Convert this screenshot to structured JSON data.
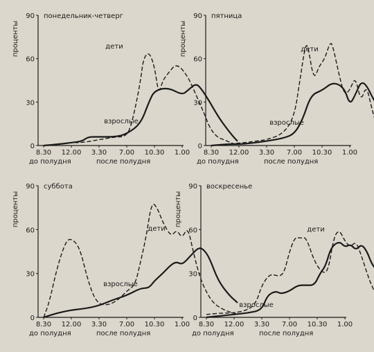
{
  "colors": {
    "background": "#dcd7cc",
    "ink": "#1a1a1a"
  },
  "chart_data": [
    {
      "type": "line",
      "title": "понедельник-четверг",
      "ylabel": "проценты",
      "ylim": [
        0,
        90
      ],
      "yticks": [
        0,
        30,
        60,
        90
      ],
      "x_ticks": [
        "8.30",
        "12.00",
        "3.30",
        "7.00",
        "10.30",
        "1.00"
      ],
      "x_subtitles": [
        "до полудня",
        "после полудня"
      ],
      "grid": false,
      "series": [
        {
          "name": "дети",
          "style": "dashed",
          "x": [
            0,
            0.6,
            1.0,
            1.4,
            2.0,
            2.6,
            2.9,
            3.1,
            3.3,
            3.5,
            3.6,
            3.8,
            4.0,
            4.15,
            4.3,
            4.5,
            4.8,
            5.2,
            5.5,
            5.8,
            6.0,
            6.25,
            6.5,
            6.75,
            7.0
          ],
          "y": [
            0,
            1,
            2,
            2,
            4,
            6,
            6,
            10,
            25,
            45,
            60,
            65,
            55,
            35,
            45,
            50,
            57,
            48,
            35,
            22,
            12,
            6,
            4,
            2,
            0
          ]
        },
        {
          "name": "взрослые",
          "style": "solid",
          "x": [
            0,
            0.6,
            1.0,
            1.4,
            1.6,
            2.0,
            2.6,
            3.0,
            3.5,
            3.8,
            4.0,
            4.5,
            5.0,
            5.2,
            5.5,
            5.7,
            6.0,
            6.3,
            6.6,
            6.85,
            7.0
          ],
          "y": [
            0,
            1,
            2,
            3,
            6,
            6,
            6,
            8,
            15,
            30,
            38,
            40,
            35,
            38,
            43,
            39,
            30,
            20,
            12,
            6,
            3
          ]
        }
      ]
    },
    {
      "type": "line",
      "title": "пятница",
      "ylabel": "проценты",
      "ylim": [
        0,
        90
      ],
      "yticks": [
        0,
        30,
        60,
        90
      ],
      "x_ticks": [
        "8.30",
        "12.00",
        "3.30",
        "7.00",
        "10.30",
        "1.00"
      ],
      "x_subtitles": [
        "до полудня",
        "после полудня"
      ],
      "grid": false,
      "series": [
        {
          "name": "дети",
          "style": "dashed",
          "x": [
            0,
            0.6,
            1.2,
            1.6,
            2.0,
            2.6,
            3.0,
            3.2,
            3.4,
            3.5,
            3.7,
            3.9,
            4.1,
            4.3,
            4.4,
            4.6,
            4.8,
            5.0,
            5.2,
            5.4,
            5.6,
            5.8,
            6.0,
            6.3,
            6.6,
            7.0
          ],
          "y": [
            0,
            1,
            2,
            3,
            4,
            8,
            20,
            45,
            70,
            68,
            45,
            55,
            60,
            72,
            68,
            50,
            35,
            38,
            48,
            30,
            42,
            25,
            12,
            8,
            6,
            2
          ]
        },
        {
          "name": "взрослые",
          "style": "solid",
          "x": [
            0,
            0.6,
            1.2,
            2.0,
            2.6,
            3.0,
            3.3,
            3.6,
            4.0,
            4.4,
            4.8,
            5.0,
            5.2,
            5.4,
            5.6,
            5.9,
            6.3,
            6.7,
            7.0
          ],
          "y": [
            0,
            1,
            1,
            3,
            5,
            8,
            18,
            35,
            38,
            44,
            40,
            28,
            35,
            44,
            42,
            30,
            20,
            10,
            6
          ]
        }
      ]
    },
    {
      "type": "line",
      "title": "суббота",
      "ylabel": "проценты",
      "ylim": [
        0,
        90
      ],
      "yticks": [
        0,
        30,
        60,
        90
      ],
      "x_ticks": [
        "8.30",
        "12.00",
        "3.30",
        "7.00",
        "10.30",
        "1.00"
      ],
      "x_subtitles": [
        "до полудня",
        "после полудня"
      ],
      "grid": false,
      "series": [
        {
          "name": "дети",
          "style": "dashed",
          "x": [
            0,
            0.2,
            0.5,
            0.8,
            1.0,
            1.3,
            1.6,
            1.9,
            2.3,
            2.7,
            3.0,
            3.3,
            3.5,
            3.7,
            3.9,
            4.1,
            4.3,
            4.6,
            4.8,
            5.0,
            5.2,
            5.4,
            5.6,
            5.8,
            6.1,
            6.5,
            7.0
          ],
          "y": [
            0,
            10,
            35,
            52,
            54,
            48,
            25,
            10,
            8,
            12,
            18,
            22,
            38,
            55,
            79,
            75,
            65,
            55,
            60,
            54,
            62,
            45,
            30,
            20,
            10,
            5,
            2
          ]
        },
        {
          "name": "взрослые",
          "style": "solid",
          "x": [
            0,
            0.5,
            1.0,
            1.5,
            2.0,
            2.5,
            3.0,
            3.5,
            3.8,
            4.0,
            4.3,
            4.6,
            4.8,
            5.0,
            5.3,
            5.6,
            5.8,
            6.0,
            6.3,
            6.7,
            7.0
          ],
          "y": [
            0,
            3,
            5,
            6,
            8,
            12,
            15,
            20,
            20,
            25,
            30,
            36,
            38,
            36,
            42,
            48,
            46,
            40,
            25,
            15,
            10
          ]
        }
      ]
    },
    {
      "type": "line",
      "title": "воскресенье",
      "ylabel": "проценты",
      "ylim": [
        0,
        90
      ],
      "yticks": [
        0,
        30,
        60,
        90
      ],
      "x_ticks": [
        "8.30",
        "12.00",
        "3.30",
        "7.00",
        "10.30",
        "1.00"
      ],
      "x_subtitles": [
        "до полудня",
        "после полудня"
      ],
      "grid": false,
      "series": [
        {
          "name": "дети",
          "style": "dashed",
          "x": [
            0,
            0.6,
            1.0,
            1.5,
            1.8,
            2.0,
            2.3,
            2.6,
            2.8,
            3.0,
            3.2,
            3.4,
            3.6,
            3.9,
            4.2,
            4.4,
            4.6,
            4.8,
            5.0,
            5.2,
            5.4,
            5.6,
            5.8,
            6.0,
            6.3,
            6.6,
            7.0
          ],
          "y": [
            2,
            3,
            3,
            5,
            10,
            22,
            30,
            28,
            30,
            45,
            55,
            54,
            55,
            38,
            30,
            32,
            55,
            60,
            52,
            48,
            52,
            42,
            30,
            20,
            10,
            5,
            2
          ]
        },
        {
          "name": "взрослые",
          "style": "solid",
          "x": [
            0,
            0.5,
            1.0,
            1.5,
            2.0,
            2.2,
            2.5,
            2.7,
            3.0,
            3.3,
            3.6,
            3.9,
            4.1,
            4.3,
            4.5,
            4.8,
            5.0,
            5.2,
            5.4,
            5.6,
            5.8,
            6.0,
            6.3,
            6.6,
            7.0
          ],
          "y": [
            0,
            1,
            2,
            3,
            5,
            15,
            18,
            16,
            18,
            22,
            22,
            22,
            30,
            35,
            48,
            52,
            48,
            50,
            46,
            50,
            45,
            35,
            30,
            25,
            10
          ]
        }
      ]
    }
  ]
}
